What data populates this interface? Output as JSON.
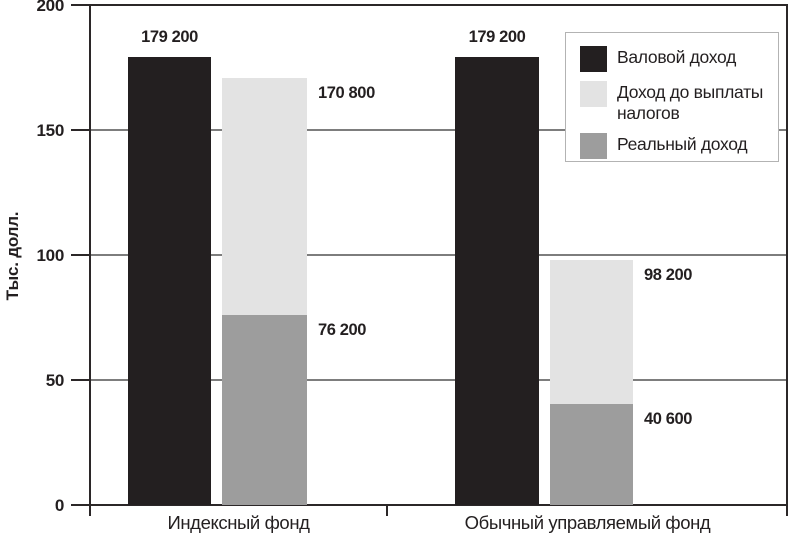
{
  "chart_data": {
    "type": "bar",
    "title": "",
    "xlabel": "",
    "ylabel": "Тыс. долл.",
    "ylim": [
      0,
      200
    ],
    "yticks": [
      0,
      50,
      100,
      150,
      200
    ],
    "ytick_labels": [
      "0",
      "50",
      "100",
      "150",
      "200"
    ],
    "axis_values_divisor": 1000,
    "grid": true,
    "legend_position": "top-right-inside",
    "categories": [
      "Индексный фонд",
      "Обычный управляемый фонд"
    ],
    "series": [
      {
        "name": "Валовой доход",
        "color": "#231f20",
        "values": [
          179200,
          179200
        ],
        "labels": [
          "179 200",
          "179 200"
        ]
      },
      {
        "name": "Доход до выплаты налогов",
        "color": "#e3e3e3",
        "values": [
          170800,
          98200
        ],
        "labels": [
          "170 800",
          "98 200"
        ]
      },
      {
        "name": "Реальный доход",
        "color": "#9d9d9d",
        "values": [
          76200,
          40600
        ],
        "labels": [
          "76 200",
          "40 600"
        ]
      }
    ],
    "colors": {
      "background": "#ffffff",
      "axis": "#2b2728",
      "grid": "#7d7d7d",
      "text": "#231f20",
      "legend_border": "#b3b3b3"
    }
  }
}
